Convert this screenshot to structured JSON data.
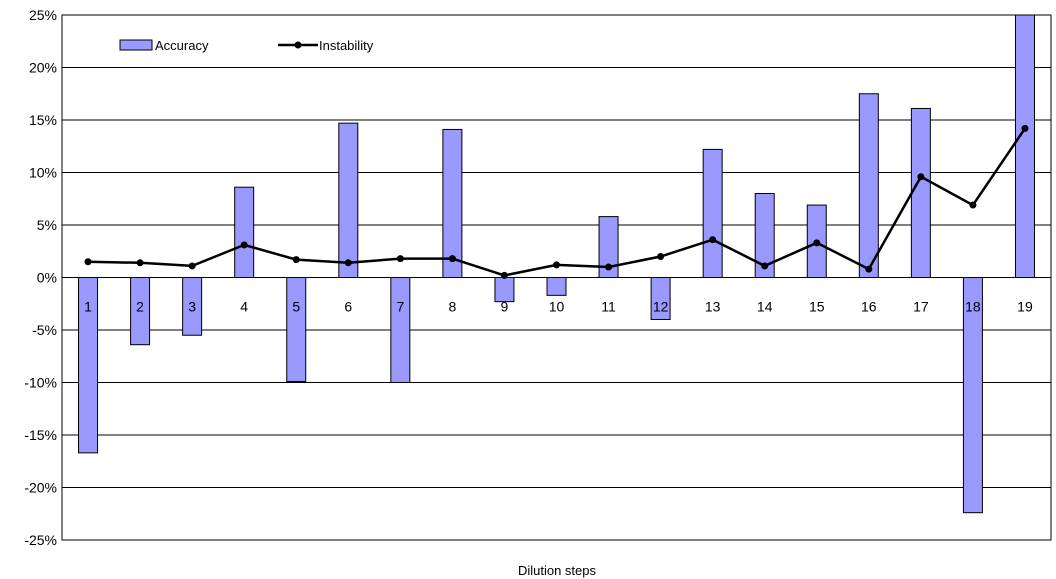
{
  "chart_data": {
    "type": "bar",
    "xlabel": "Dilution steps",
    "ylabel": "",
    "ylim": [
      -25,
      25
    ],
    "y_ticks": [
      25,
      20,
      15,
      10,
      5,
      0,
      -5,
      -10,
      -15,
      -20,
      -25
    ],
    "y_tick_labels": [
      "25%",
      "20%",
      "15%",
      "10%",
      "5%",
      "0%",
      "-5%",
      "-10%",
      "-15%",
      "-20%",
      "-25%"
    ],
    "categories": [
      "1",
      "2",
      "3",
      "4",
      "5",
      "6",
      "7",
      "8",
      "9",
      "10",
      "11",
      "12",
      "13",
      "14",
      "15",
      "16",
      "17",
      "18",
      "19"
    ],
    "series": [
      {
        "name": "Accuracy",
        "kind": "bar",
        "color": "#9999ff",
        "values": [
          -16.7,
          -6.4,
          -5.5,
          8.6,
          -9.9,
          14.7,
          -10.0,
          14.1,
          -2.3,
          -1.7,
          5.8,
          -4.0,
          12.2,
          8.0,
          6.9,
          17.5,
          16.1,
          -22.4,
          25.0
        ]
      },
      {
        "name": "Instability",
        "kind": "line",
        "color": "#000000",
        "values": [
          1.5,
          1.4,
          1.1,
          3.1,
          1.7,
          1.4,
          1.8,
          1.8,
          0.2,
          1.2,
          1.0,
          2.0,
          3.6,
          1.1,
          3.3,
          0.8,
          9.6,
          6.9,
          14.2
        ]
      }
    ],
    "grid": true,
    "legend_position": "top-left"
  }
}
